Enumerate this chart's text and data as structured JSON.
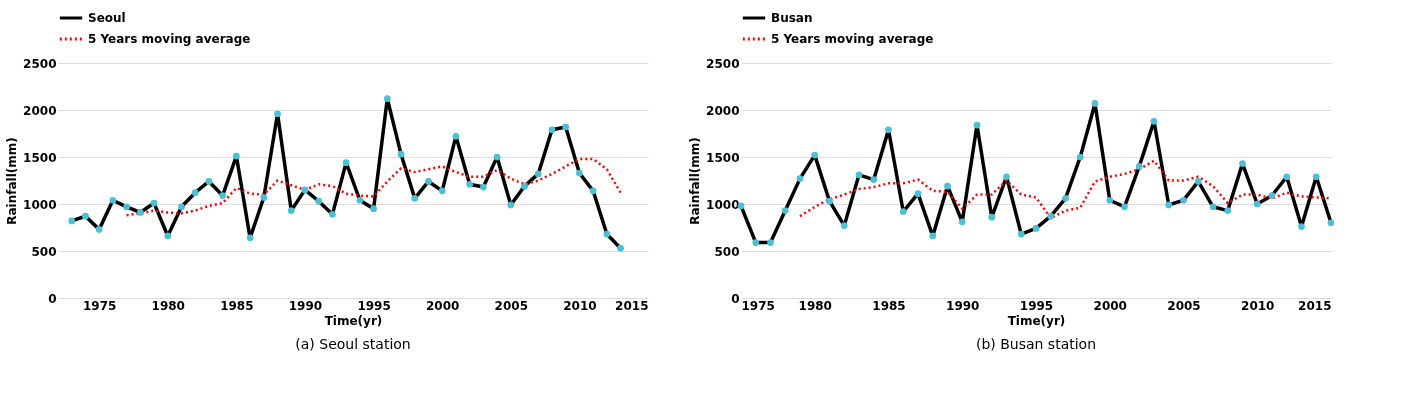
{
  "chart_data": [
    {
      "type": "line",
      "xlabel": "Time(yr)",
      "ylabel": "Rainfall(mm)",
      "annotations": [
        "(a) Seoul station"
      ],
      "xlim": [
        1972,
        2015
      ],
      "xticks": [
        1975,
        1980,
        1985,
        1990,
        1995,
        2000,
        2005,
        2010,
        2015
      ],
      "ylim": [
        0,
        2500
      ],
      "yticks": [
        0,
        500,
        1000,
        1500,
        2000,
        2500
      ],
      "grid": "y",
      "legend": "top",
      "series": [
        {
          "name": "Seoul",
          "color": "#000000",
          "marker": "circle",
          "line_style": "solid",
          "x": [
            1973,
            1974,
            1975,
            1976,
            1977,
            1978,
            1979,
            1980,
            1981,
            1982,
            1983,
            1984,
            1985,
            1986,
            1987,
            1988,
            1989,
            1990,
            1991,
            1992,
            1993,
            1994,
            1995,
            1996,
            1997,
            1998,
            1999,
            2000,
            2001,
            2002,
            2003,
            2004,
            2005,
            2006,
            2007,
            2008,
            2009,
            2010,
            2011,
            2012,
            2013
          ],
          "values": [
            820,
            870,
            730,
            1040,
            970,
            910,
            1010,
            660,
            970,
            1120,
            1240,
            1090,
            1510,
            640,
            1070,
            1960,
            930,
            1150,
            1030,
            890,
            1440,
            1040,
            950,
            2120,
            1530,
            1060,
            1240,
            1140,
            1720,
            1210,
            1180,
            1500,
            990,
            1190,
            1320,
            1790,
            1820,
            1330,
            1140,
            680,
            530
          ]
        },
        {
          "name": "5 Years moving average",
          "color": "#ff0000",
          "marker": "none",
          "line_style": "dotted",
          "x": [
            1977,
            1978,
            1979,
            1980,
            1981,
            1982,
            1983,
            1984,
            1985,
            1986,
            1987,
            1988,
            1989,
            1990,
            1991,
            1992,
            1993,
            1994,
            1995,
            1996,
            1997,
            1998,
            1999,
            2000,
            2001,
            2002,
            2003,
            2004,
            2005,
            2006,
            2007,
            2008,
            2009,
            2010,
            2011,
            2012,
            2013
          ],
          "values": [
            880,
            900,
            930,
            910,
            900,
            930,
            980,
            1010,
            1170,
            1110,
            1100,
            1250,
            1200,
            1150,
            1210,
            1190,
            1110,
            1090,
            1080,
            1240,
            1380,
            1340,
            1370,
            1400,
            1340,
            1290,
            1290,
            1360,
            1270,
            1210,
            1250,
            1320,
            1400,
            1480,
            1480,
            1370,
            1120
          ]
        }
      ]
    },
    {
      "type": "line",
      "xlabel": "Time(yr)",
      "ylabel": "Rainfall(mm)",
      "annotations": [
        "(b) Busan station"
      ],
      "xlim": [
        1975,
        2015
      ],
      "xticks": [
        1975,
        1980,
        1985,
        1990,
        1995,
        2000,
        2005,
        2010,
        2015
      ],
      "ylim": [
        0,
        2500
      ],
      "yticks": [
        0,
        500,
        1000,
        1500,
        2000,
        2500
      ],
      "grid": "y",
      "legend": "top",
      "series": [
        {
          "name": "Busan",
          "color": "#000000",
          "marker": "circle",
          "line_style": "solid",
          "x": [
            1975,
            1976,
            1977,
            1978,
            1979,
            1980,
            1981,
            1982,
            1983,
            1984,
            1985,
            1986,
            1987,
            1988,
            1989,
            1990,
            1991,
            1992,
            1993,
            1994,
            1995,
            1996,
            1997,
            1998,
            1999,
            2000,
            2001,
            2002,
            2003,
            2004,
            2005,
            2006,
            2007,
            2008,
            2009,
            2010,
            2011,
            2012,
            2013,
            2014,
            2015
          ],
          "values": [
            980,
            590,
            590,
            930,
            1270,
            1520,
            1030,
            770,
            1310,
            1260,
            1790,
            920,
            1110,
            660,
            1190,
            810,
            1840,
            860,
            1290,
            680,
            740,
            870,
            1060,
            1500,
            2070,
            1040,
            970,
            1400,
            1880,
            990,
            1040,
            1240,
            970,
            930,
            1430,
            1000,
            1090,
            1290,
            760,
            1290,
            800
          ]
        },
        {
          "name": "5 Years moving average",
          "color": "#ff0000",
          "marker": "none",
          "line_style": "dotted",
          "x": [
            1979,
            1980,
            1981,
            1982,
            1983,
            1984,
            1985,
            1986,
            1987,
            1988,
            1989,
            1990,
            1991,
            1992,
            1993,
            1994,
            1995,
            1996,
            1997,
            1998,
            1999,
            2000,
            2001,
            2002,
            2003,
            2004,
            2005,
            2006,
            2007,
            2008,
            2009,
            2010,
            2011,
            2012,
            2013,
            2014,
            2015
          ],
          "values": [
            870,
            970,
            1050,
            1100,
            1160,
            1180,
            1220,
            1220,
            1260,
            1140,
            1130,
            950,
            1100,
            1100,
            1250,
            1100,
            1070,
            850,
            930,
            960,
            1240,
            1290,
            1320,
            1370,
            1460,
            1250,
            1250,
            1290,
            1190,
            1010,
            1100,
            1100,
            1060,
            1120,
            1080,
            1070,
            1060
          ]
        }
      ]
    }
  ]
}
